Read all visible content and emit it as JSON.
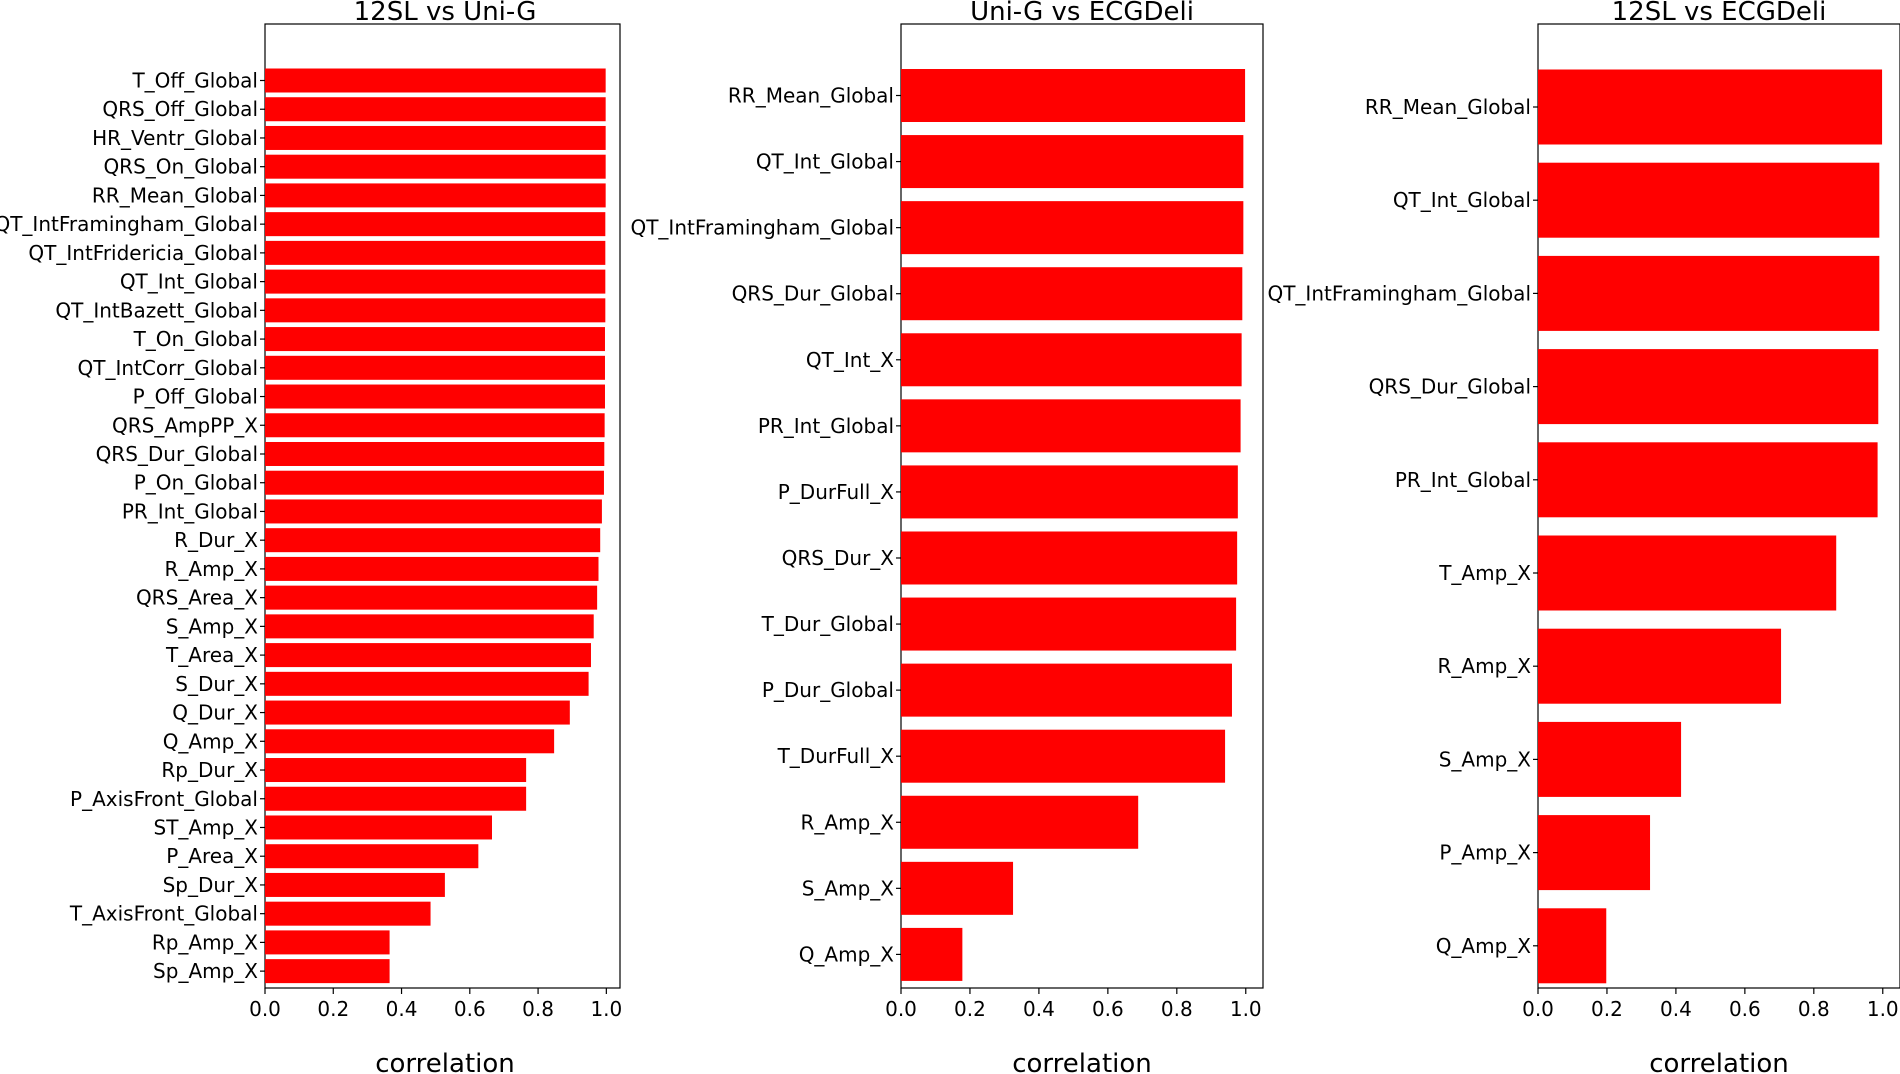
{
  "chart_data": [
    {
      "type": "bar",
      "orientation": "horizontal",
      "title": "12SL vs Uni-G",
      "xlabel": "correlation",
      "ylabel": "",
      "xlim": [
        0.0,
        1.04
      ],
      "xticks": [
        "0.0",
        "0.2",
        "0.4",
        "0.6",
        "0.8",
        "1.0"
      ],
      "grid": false,
      "color": "#ff0000",
      "categories": [
        "T_Off_Global",
        "QRS_Off_Global",
        "HR_Ventr_Global",
        "QRS_On_Global",
        "RR_Mean_Global",
        "QT_IntFramingham_Global",
        "QT_IntFridericia_Global",
        "QT_Int_Global",
        "QT_IntBazett_Global",
        "T_On_Global",
        "QT_IntCorr_Global",
        "P_Off_Global",
        "QRS_AmpPP_X",
        "QRS_Dur_Global",
        "P_On_Global",
        "PR_Int_Global",
        "R_Dur_X",
        "R_Amp_X",
        "QRS_Area_X",
        "S_Amp_X",
        "T_Area_X",
        "S_Dur_X",
        "Q_Dur_X",
        "Q_Amp_X",
        "Rp_Dur_X",
        "P_AxisFront_Global",
        "ST_Amp_X",
        "P_Area_X",
        "Sp_Dur_X",
        "T_AxisFront_Global",
        "Rp_Amp_X",
        "Sp_Amp_X"
      ],
      "values": [
        0.998,
        0.998,
        0.998,
        0.998,
        0.998,
        0.997,
        0.997,
        0.997,
        0.997,
        0.996,
        0.996,
        0.996,
        0.995,
        0.994,
        0.993,
        0.987,
        0.982,
        0.977,
        0.973,
        0.963,
        0.955,
        0.948,
        0.893,
        0.847,
        0.765,
        0.765,
        0.665,
        0.625,
        0.527,
        0.485,
        0.365,
        0.365
      ]
    },
    {
      "type": "bar",
      "orientation": "horizontal",
      "title": "Uni-G vs ECGDeli",
      "xlabel": "correlation",
      "ylabel": "",
      "xlim": [
        0.0,
        1.05
      ],
      "xticks": [
        "0.0",
        "0.2",
        "0.4",
        "0.6",
        "0.8",
        "1.0"
      ],
      "grid": false,
      "color": "#ff0000",
      "categories": [
        "RR_Mean_Global",
        "QT_Int_Global",
        "QT_IntFramingham_Global",
        "QRS_Dur_Global",
        "QT_Int_X",
        "PR_Int_Global",
        "P_DurFull_X",
        "QRS_Dur_X",
        "T_Dur_Global",
        "P_Dur_Global",
        "T_DurFull_X",
        "R_Amp_X",
        "S_Amp_X",
        "Q_Amp_X"
      ],
      "values": [
        0.998,
        0.993,
        0.993,
        0.99,
        0.988,
        0.985,
        0.977,
        0.975,
        0.972,
        0.96,
        0.94,
        0.688,
        0.325,
        0.178
      ]
    },
    {
      "type": "bar",
      "orientation": "horizontal",
      "title": "12SL vs ECGDeli",
      "xlabel": "correlation",
      "ylabel": "",
      "xlim": [
        0.0,
        1.05
      ],
      "xticks": [
        "0.0",
        "0.2",
        "0.4",
        "0.6",
        "0.8",
        "1.0"
      ],
      "grid": false,
      "color": "#ff0000",
      "categories": [
        "RR_Mean_Global",
        "QT_Int_Global",
        "QT_IntFramingham_Global",
        "QRS_Dur_Global",
        "PR_Int_Global",
        "T_Amp_X",
        "R_Amp_X",
        "S_Amp_X",
        "P_Amp_X",
        "Q_Amp_X"
      ],
      "values": [
        0.998,
        0.99,
        0.99,
        0.987,
        0.985,
        0.865,
        0.705,
        0.415,
        0.325,
        0.198
      ]
    }
  ]
}
